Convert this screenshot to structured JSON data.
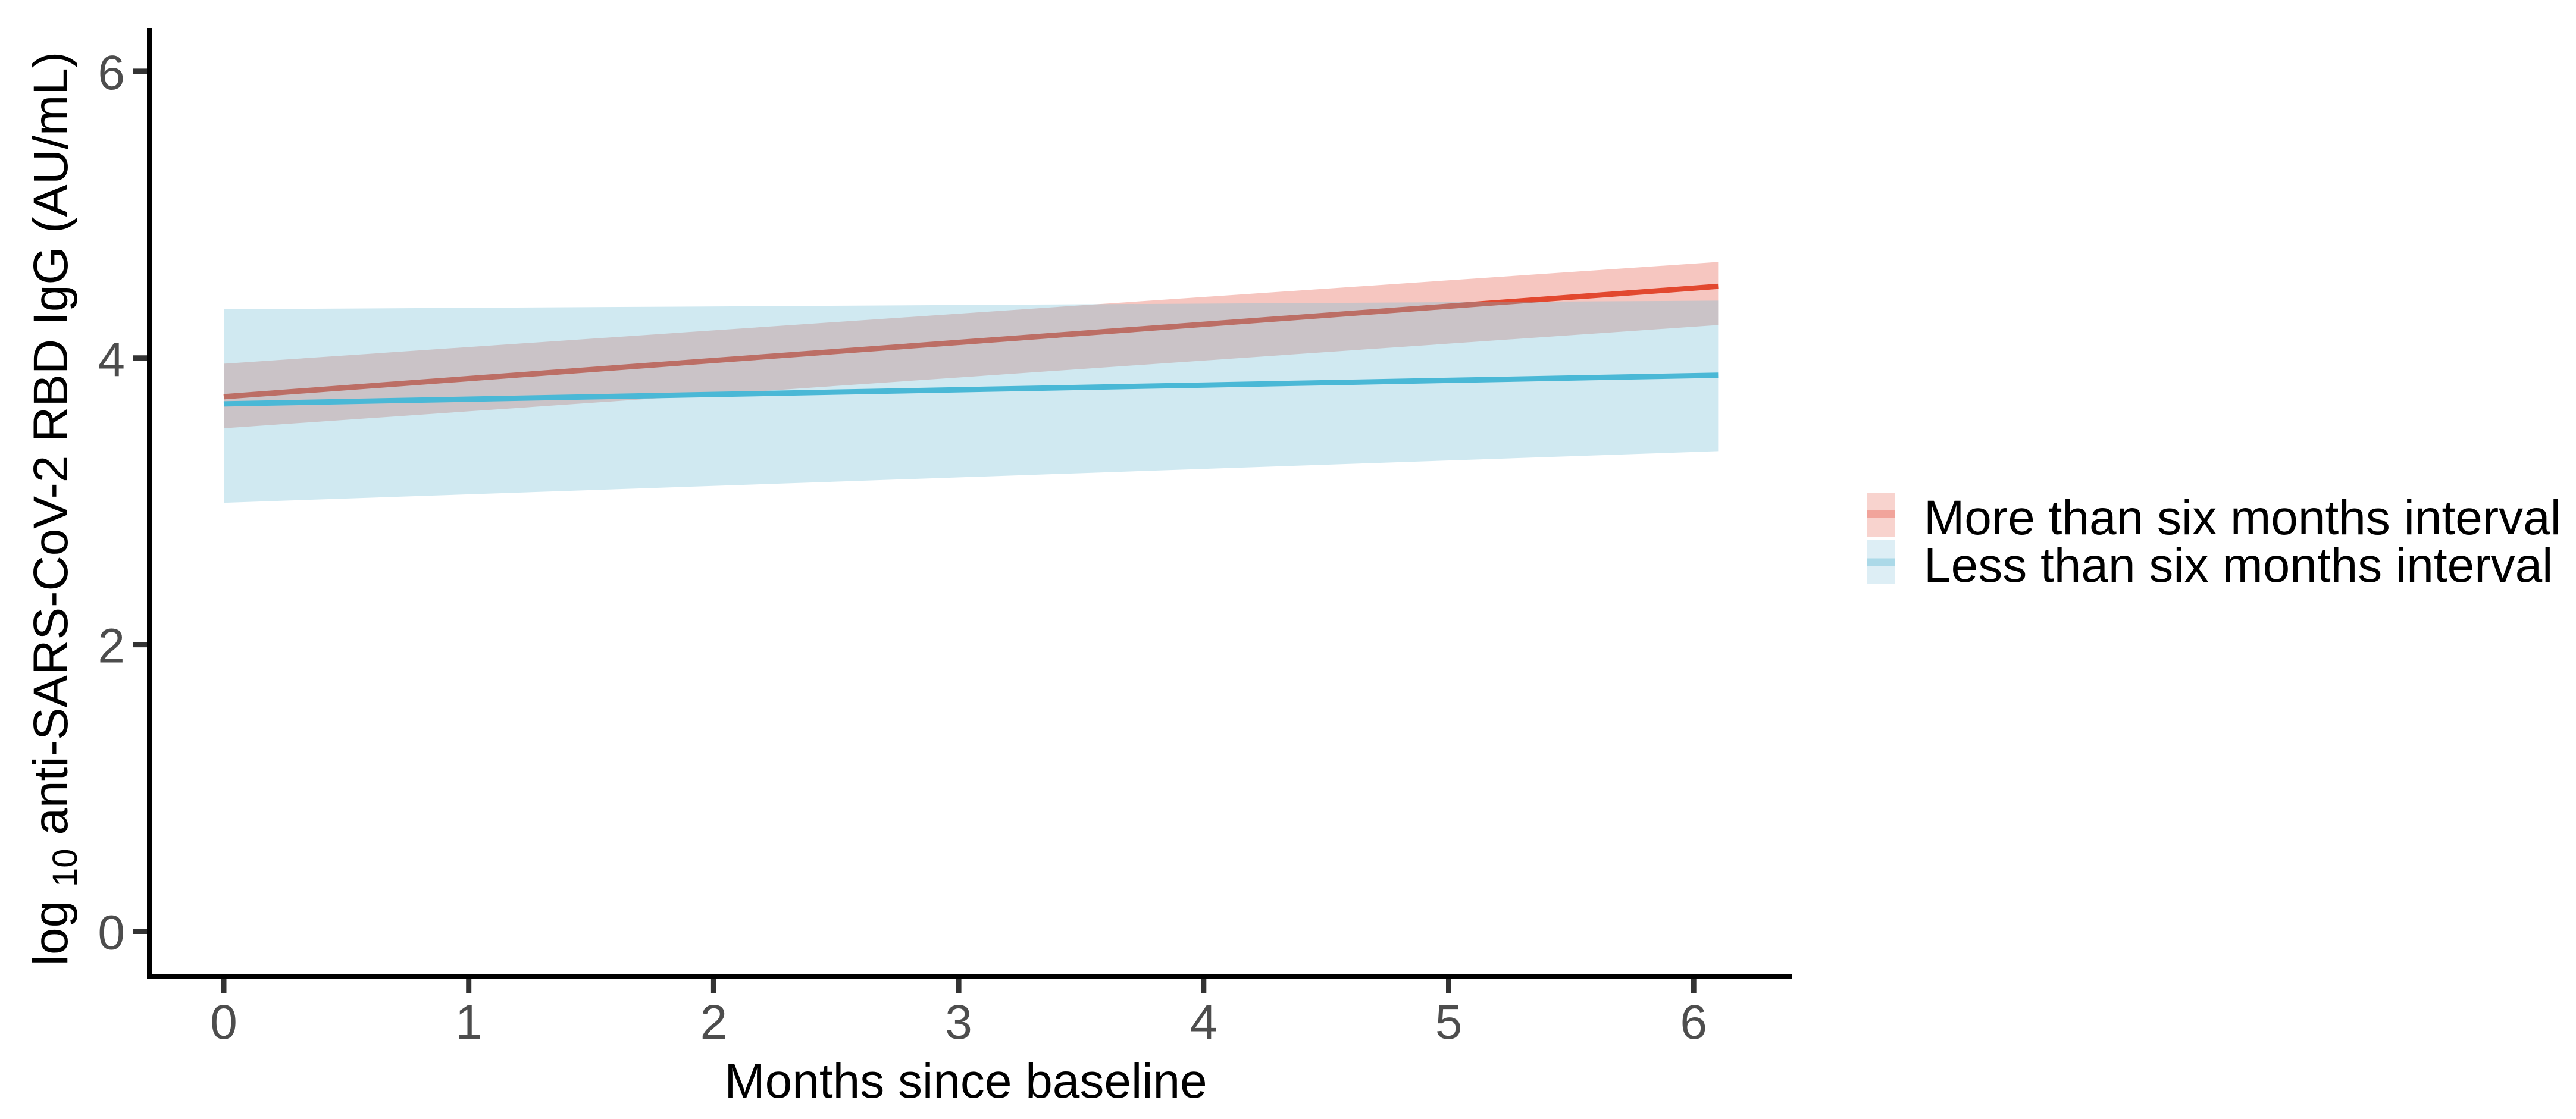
{
  "figure": {
    "background": "#ffffff"
  },
  "chart_data": {
    "type": "line",
    "title": "",
    "xlabel": "Months since baseline",
    "ylabel": "log10 anti-SARS-CoV-2 RBD IgG (AU/mL)",
    "ylabel_parts": {
      "prefix": "log",
      "subscript": "10",
      "rest": " anti-SARS-CoV-2 RBD IgG (AU/mL)"
    },
    "x_ticks": [
      0,
      1,
      2,
      3,
      4,
      5,
      6
    ],
    "y_ticks": [
      0,
      2,
      4,
      6
    ],
    "xlim": [
      -0.31,
      6.4
    ],
    "ylim": [
      -0.33,
      6.3
    ],
    "grid": false,
    "legend_position": "right",
    "series": [
      {
        "name": "More than six months interval",
        "line_color": "#e2482f",
        "ribbon_color": "#e4523f",
        "ribbon_opacity": 0.33,
        "x": [
          0,
          6.1
        ],
        "y": [
          3.73,
          4.5
        ],
        "ci_lower": [
          3.51,
          4.23
        ],
        "ci_upper": [
          3.96,
          4.67
        ]
      },
      {
        "name": "Less than six months interval",
        "line_color": "#4ab8d6",
        "ribbon_color": "#6fbdd5",
        "ribbon_opacity": 0.33,
        "x": [
          0,
          6.1
        ],
        "y": [
          3.68,
          3.88
        ],
        "ci_lower": [
          2.99,
          3.35
        ],
        "ci_upper": [
          4.34,
          4.4
        ]
      }
    ]
  },
  "axes": {
    "x_tick_labels": [
      "0",
      "1",
      "2",
      "3",
      "4",
      "5",
      "6"
    ],
    "y_tick_labels": [
      "0",
      "2",
      "4",
      "6"
    ],
    "tick_label_color": "#4d4d4d",
    "tick_mark_color": "#333333",
    "axis_line_color": "#000000"
  },
  "legend": {
    "items": [
      {
        "label": "More than six months interval",
        "key_fill": "#f8d3ce",
        "key_line": "#f1a49b"
      },
      {
        "label": "Less than six months interval",
        "key_fill": "#ddeef5",
        "key_line": "#abd9e8"
      }
    ]
  }
}
